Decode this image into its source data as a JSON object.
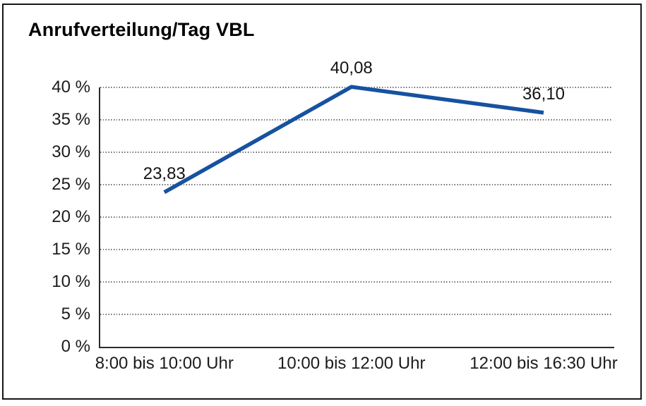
{
  "window": {
    "background": "#ffffff",
    "frame_border_color": "#161616",
    "axis_color": "#2b2b2b",
    "gridline_color": "#6f6f6f",
    "text_color": "#1c1c1c"
  },
  "chart_data": {
    "type": "line",
    "title": "Anrufverteilung/Tag VBL",
    "categories": [
      "8:00 bis 10:00 Uhr",
      "10:00 bis 12:00 Uhr",
      "12:00 bis 16:30 Uhr"
    ],
    "series": [
      {
        "values": [
          23.83,
          40.08,
          36.1
        ],
        "value_labels": [
          "23,83",
          "40,08",
          "36,10"
        ],
        "color": "#16529F",
        "stroke_width": 5.5
      }
    ],
    "xlabel": "",
    "ylabel": "",
    "ylim": [
      0,
      40
    ],
    "y_ticks": {
      "values": [
        0,
        5,
        10,
        15,
        20,
        25,
        30,
        35,
        40
      ],
      "labels": [
        "0 %",
        "5 %",
        "10 %",
        "15 %",
        "20 %",
        "25 %",
        "30 %",
        "35 %",
        "40 %"
      ]
    },
    "grid": "horizontal-dotted",
    "legend": "none",
    "markers": "none"
  }
}
